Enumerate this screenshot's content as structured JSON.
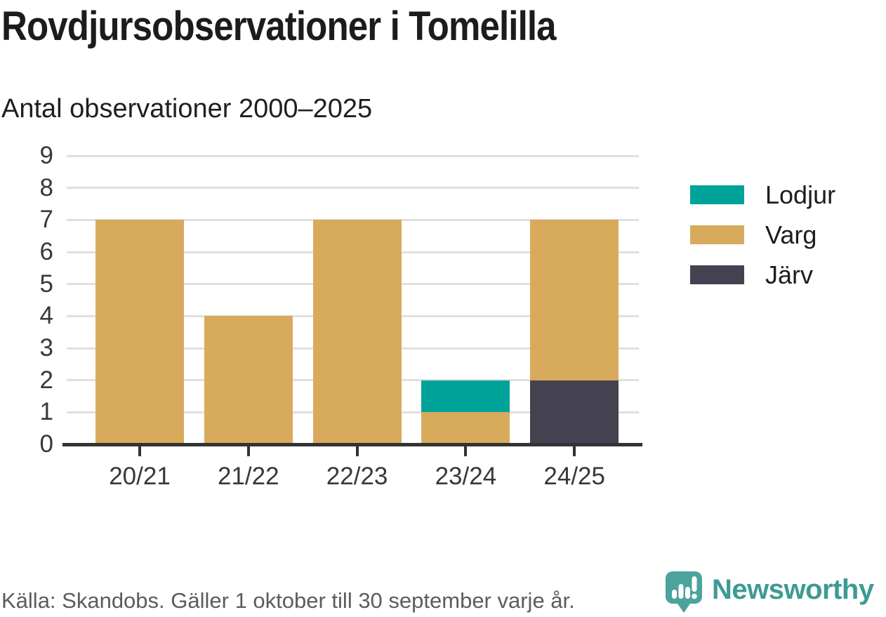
{
  "chart_data": {
    "type": "bar",
    "stacked": true,
    "title": "Rovdjursobservationer i Tomelilla",
    "subtitle": "Antal observationer 2000–2025",
    "categories": [
      "20/21",
      "21/22",
      "22/23",
      "23/24",
      "24/25"
    ],
    "series": [
      {
        "name": "Lodjur",
        "color": "#00A39A",
        "values": [
          0,
          0,
          0,
          1,
          0
        ]
      },
      {
        "name": "Varg",
        "color": "#D8AB5C",
        "values": [
          7,
          4,
          7,
          1,
          5
        ]
      },
      {
        "name": "Järv",
        "color": "#444250",
        "values": [
          0,
          0,
          0,
          0,
          2
        ]
      }
    ],
    "stack_order_bottom_to_top": [
      "Järv",
      "Varg",
      "Lodjur"
    ],
    "ylim": [
      0,
      9
    ],
    "yticks": [
      0,
      1,
      2,
      3,
      4,
      5,
      6,
      7,
      8,
      9
    ],
    "grid": true,
    "legend_position": "right",
    "xlabel": "",
    "ylabel": ""
  },
  "footer": {
    "source": "Källa: Skandobs. Gäller 1 oktober till 30 september varje år."
  },
  "branding": {
    "name": "Newsworthy",
    "icon": "bar-chart-speech-bubble-icon",
    "icon_color": "#4BA39C",
    "wordmark_color": "#3D9B94"
  },
  "colors": {
    "background": "#FFFFFF",
    "gridline": "#E0E0E0",
    "axis_line": "#333333",
    "axis_text": "#383838",
    "title_text": "#1C1C1C",
    "footer_text": "#5C5C5C"
  }
}
